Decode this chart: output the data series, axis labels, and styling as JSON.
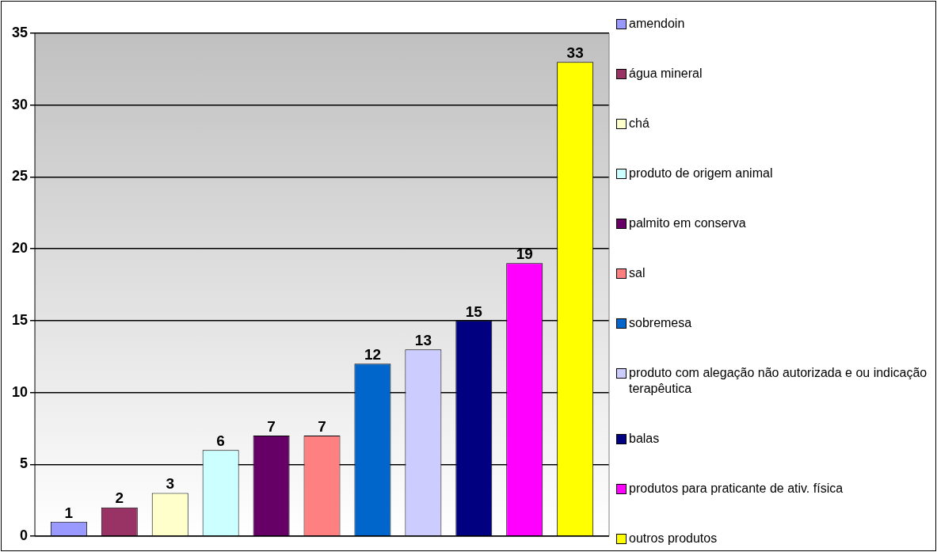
{
  "chart_data": {
    "type": "bar",
    "categories": [
      null
    ],
    "series": [
      {
        "name": "amendoin",
        "color": "#9999ff",
        "values": [
          1
        ]
      },
      {
        "name": "água mineral",
        "color": "#993366",
        "values": [
          2
        ]
      },
      {
        "name": "chá",
        "color": "#ffffcc",
        "values": [
          3
        ]
      },
      {
        "name": "produto de origem animal",
        "color": "#ccffff",
        "values": [
          6
        ]
      },
      {
        "name": "palmito em conserva",
        "color": "#660066",
        "values": [
          7
        ]
      },
      {
        "name": "sal",
        "color": "#ff8080",
        "values": [
          7
        ]
      },
      {
        "name": "sobremesa",
        "color": "#0066cc",
        "values": [
          12
        ]
      },
      {
        "name": "produto com alegação não autorizada e ou indicação terapêutica",
        "color": "#ccccff",
        "values": [
          13
        ]
      },
      {
        "name": "balas",
        "color": "#000080",
        "values": [
          15
        ]
      },
      {
        "name": "produtos para praticante de ativ. física",
        "color": "#ff00ff",
        "values": [
          19
        ]
      },
      {
        "name": "outros produtos",
        "color": "#ffff00",
        "values": [
          33
        ]
      }
    ],
    "ylim": [
      0,
      35
    ],
    "yticks": [
      0,
      5,
      10,
      15,
      20,
      25,
      30,
      35
    ],
    "grid": "y",
    "legend": "right",
    "data_labels": true
  }
}
